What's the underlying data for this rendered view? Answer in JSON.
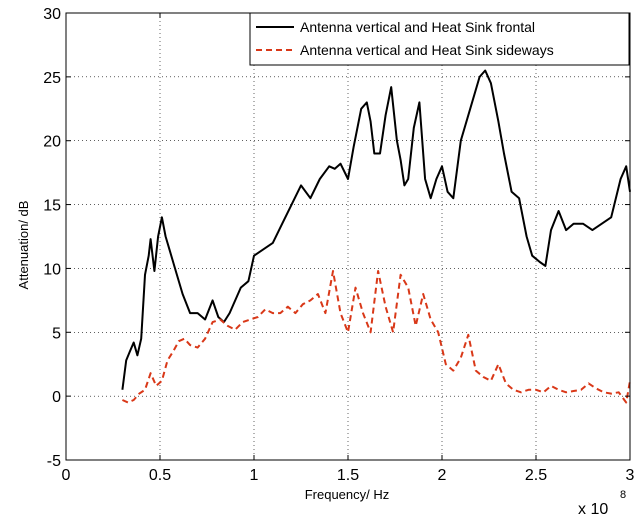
{
  "chart_data": {
    "type": "line",
    "title": "",
    "xlabel": "Frequency/ Hz",
    "ylabel": "Attenuation/ dB",
    "x_multiplier_base": "x 10",
    "x_multiplier_exp": "8",
    "xlim": [
      0,
      3
    ],
    "ylim": [
      -5,
      30
    ],
    "x_ticks": [
      0,
      0.5,
      1,
      1.5,
      2,
      2.5,
      3
    ],
    "x_tick_labels": [
      "0",
      "0.5",
      "1",
      "1.5",
      "2",
      "2.5",
      "3"
    ],
    "y_ticks": [
      -5,
      0,
      5,
      10,
      15,
      20,
      25,
      30
    ],
    "y_tick_labels": [
      "-5",
      "0",
      "5",
      "10",
      "15",
      "20",
      "25",
      "30"
    ],
    "grid": true,
    "legend_position": "top-right",
    "series": [
      {
        "name": "Antenna vertical and Heat Sink frontal",
        "color": "#000000",
        "dash": "solid",
        "x": [
          0.3,
          0.32,
          0.34,
          0.36,
          0.38,
          0.4,
          0.42,
          0.44,
          0.45,
          0.47,
          0.49,
          0.51,
          0.53,
          0.55,
          0.58,
          0.62,
          0.66,
          0.7,
          0.74,
          0.78,
          0.81,
          0.84,
          0.87,
          0.9,
          0.93,
          0.97,
          1.0,
          1.05,
          1.1,
          1.15,
          1.2,
          1.25,
          1.3,
          1.35,
          1.4,
          1.43,
          1.46,
          1.5,
          1.53,
          1.57,
          1.6,
          1.62,
          1.64,
          1.67,
          1.7,
          1.73,
          1.76,
          1.78,
          1.8,
          1.82,
          1.85,
          1.88,
          1.91,
          1.94,
          1.97,
          2.0,
          2.03,
          2.06,
          2.1,
          2.15,
          2.2,
          2.23,
          2.26,
          2.3,
          2.33,
          2.37,
          2.41,
          2.45,
          2.48,
          2.52,
          2.55,
          2.58,
          2.62,
          2.66,
          2.7,
          2.75,
          2.8,
          2.85,
          2.9,
          2.95,
          2.98,
          3.0
        ],
        "values": [
          0.5,
          2.8,
          3.5,
          4.2,
          3.2,
          4.5,
          9.5,
          11.0,
          12.3,
          9.8,
          12.5,
          14.0,
          12.5,
          11.5,
          10.0,
          8.0,
          6.5,
          6.5,
          6.0,
          7.5,
          6.2,
          5.8,
          6.5,
          7.5,
          8.5,
          9.0,
          11.0,
          11.5,
          12.0,
          13.5,
          15.0,
          16.5,
          15.5,
          17.0,
          18.0,
          17.8,
          18.2,
          17.0,
          19.5,
          22.5,
          23.0,
          21.5,
          19.0,
          19.0,
          22.0,
          24.2,
          20.0,
          18.5,
          16.5,
          17.0,
          21.0,
          23.0,
          17.0,
          15.5,
          17.0,
          18.0,
          16.0,
          15.5,
          20.0,
          22.5,
          25.0,
          25.5,
          24.5,
          21.5,
          19.0,
          16.0,
          15.5,
          12.5,
          11.0,
          10.5,
          10.2,
          13.0,
          14.5,
          13.0,
          13.5,
          13.5,
          13.0,
          13.5,
          14.0,
          17.0,
          18.0,
          16.0
        ]
      },
      {
        "name": "Antenna vertical and Heat Sink sideways",
        "color": "#d93818",
        "dash": "dashed",
        "x": [
          0.3,
          0.33,
          0.36,
          0.39,
          0.42,
          0.45,
          0.48,
          0.51,
          0.54,
          0.57,
          0.6,
          0.63,
          0.66,
          0.7,
          0.74,
          0.78,
          0.82,
          0.86,
          0.9,
          0.94,
          0.98,
          1.02,
          1.06,
          1.1,
          1.14,
          1.18,
          1.22,
          1.26,
          1.3,
          1.34,
          1.38,
          1.42,
          1.46,
          1.5,
          1.54,
          1.58,
          1.62,
          1.66,
          1.7,
          1.74,
          1.78,
          1.82,
          1.86,
          1.9,
          1.94,
          1.98,
          2.02,
          2.06,
          2.1,
          2.14,
          2.18,
          2.22,
          2.26,
          2.3,
          2.34,
          2.38,
          2.42,
          2.46,
          2.5,
          2.54,
          2.58,
          2.62,
          2.66,
          2.7,
          2.74,
          2.78,
          2.82,
          2.86,
          2.9,
          2.94,
          2.98,
          3.0
        ],
        "values": [
          -0.3,
          -0.5,
          -0.3,
          0.2,
          0.5,
          1.8,
          0.8,
          1.2,
          2.8,
          3.5,
          4.3,
          4.5,
          4.0,
          3.8,
          4.5,
          5.8,
          6.0,
          5.5,
          5.2,
          5.8,
          6.0,
          6.2,
          6.8,
          6.5,
          6.5,
          7.0,
          6.5,
          7.2,
          7.5,
          8.0,
          6.5,
          9.8,
          6.5,
          5.0,
          8.5,
          6.5,
          5.0,
          9.8,
          7.0,
          5.0,
          9.5,
          8.5,
          5.5,
          8.0,
          6.0,
          5.0,
          2.5,
          2.0,
          3.0,
          4.8,
          2.0,
          1.5,
          1.2,
          2.5,
          1.0,
          0.5,
          0.3,
          0.5,
          0.5,
          0.3,
          0.8,
          0.5,
          0.3,
          0.4,
          0.5,
          1.0,
          0.6,
          0.3,
          0.2,
          0.3,
          -0.5,
          1.2
        ]
      }
    ]
  }
}
